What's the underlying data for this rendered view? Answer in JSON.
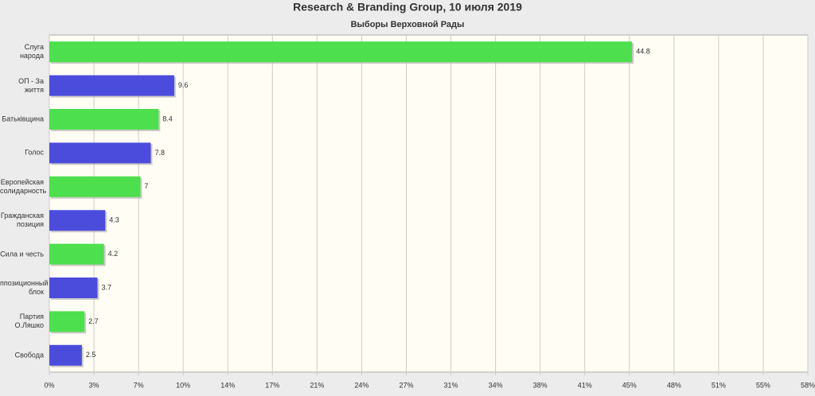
{
  "chart_data": {
    "type": "hbar",
    "title": "Research & Branding Group, 10 июля 2019",
    "subtitle": "Выборы Верховной Рады",
    "categories": [
      "Слуга народа",
      "ОП - За життя",
      "Батьківщина",
      "Голос",
      "Европейская\nсолидарность",
      "Гражданская\nпозиция",
      "Сила и честь",
      "ппозиционный\nблок",
      "Партия\nО.Ляшко",
      "Свобода"
    ],
    "values": [
      44.8,
      9.6,
      8.4,
      7.8,
      7,
      4.3,
      4.2,
      3.7,
      2.7,
      2.5
    ],
    "colors": [
      "#4ddf4d",
      "#4c4cdc",
      "#4ddf4d",
      "#4c4cdc",
      "#4ddf4d",
      "#4c4cdc",
      "#4ddf4d",
      "#4c4cdc",
      "#4ddf4d",
      "#4c4cdc"
    ],
    "xlim": [
      0,
      58.31
    ],
    "xticks": [
      0,
      {
        "value": 3.43,
        "label": "3%"
      },
      {
        "value": 6.86,
        "label": "7%"
      },
      {
        "value": 10.29,
        "label": "10%"
      },
      {
        "value": 13.72,
        "label": "14%"
      },
      {
        "value": 17.15,
        "label": "17%"
      },
      {
        "value": 20.58,
        "label": "21%"
      },
      {
        "value": 24.01,
        "label": "24%"
      },
      {
        "value": 27.44,
        "label": "27%"
      },
      {
        "value": 30.87,
        "label": "31%"
      },
      {
        "value": 34.3,
        "label": "34%"
      },
      {
        "value": 37.73,
        "label": "38%"
      },
      {
        "value": 41.16,
        "label": "41%"
      },
      {
        "value": 44.59,
        "label": "45%"
      },
      {
        "value": 48.02,
        "label": "48%"
      },
      {
        "value": 51.45,
        "label": "51%"
      },
      {
        "value": 54.88,
        "label": "55%"
      },
      {
        "value": 58.31,
        "label": "58%"
      }
    ],
    "zero_label": "0%",
    "grid": true
  }
}
